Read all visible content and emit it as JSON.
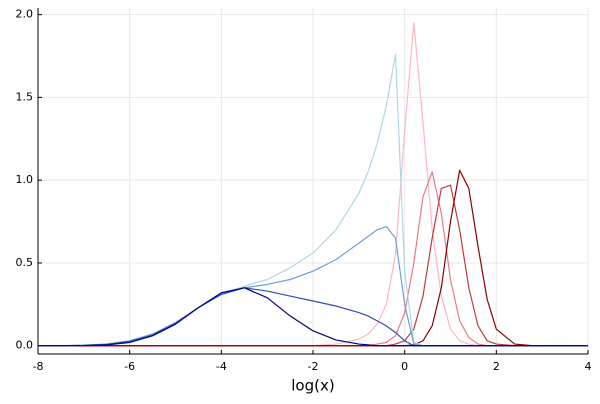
{
  "chart_data": {
    "type": "line",
    "xlabel": "log(x)",
    "x": [
      -8,
      -7.5,
      -7,
      -6.5,
      -6,
      -5.5,
      -5,
      -4.5,
      -4,
      -3.5,
      -3,
      -2.5,
      -2,
      -1.5,
      -1,
      -0.8,
      -0.6,
      -0.4,
      -0.2,
      0,
      0.2,
      0.4,
      0.6,
      0.8,
      1,
      1.2,
      1.4,
      1.6,
      1.8,
      2,
      2.4,
      2.8,
      3.2,
      3.6,
      4
    ],
    "series": [
      {
        "color": "#ffb6c1",
        "values": [
          0,
          0,
          0,
          0,
          0,
          0,
          0,
          0,
          0,
          0,
          0,
          0,
          0,
          0.01,
          0.04,
          0.07,
          0.13,
          0.25,
          0.55,
          1.3,
          1.95,
          1.35,
          0.7,
          0.3,
          0.1,
          0.03,
          0.01,
          0,
          0,
          0,
          0,
          0,
          0,
          0,
          0
        ]
      },
      {
        "color": "#e67a86",
        "values": [
          0,
          0,
          0,
          0,
          0,
          0,
          0,
          0,
          0,
          0,
          0,
          0,
          0,
          0,
          0,
          0,
          0.01,
          0.02,
          0.06,
          0.2,
          0.5,
          0.9,
          1.05,
          0.8,
          0.4,
          0.15,
          0.05,
          0.01,
          0,
          0,
          0,
          0,
          0,
          0,
          0
        ]
      },
      {
        "color": "#c03a44",
        "values": [
          0,
          0,
          0,
          0,
          0,
          0,
          0,
          0,
          0,
          0,
          0,
          0,
          0,
          0,
          0,
          0,
          0,
          0,
          0.01,
          0.03,
          0.1,
          0.3,
          0.65,
          0.95,
          0.97,
          0.7,
          0.35,
          0.12,
          0.03,
          0.01,
          0,
          0,
          0,
          0,
          0
        ]
      },
      {
        "color": "#8b0000",
        "values": [
          0,
          0,
          0,
          0,
          0,
          0,
          0,
          0,
          0,
          0,
          0,
          0,
          0,
          0,
          0,
          0,
          0,
          0,
          0,
          0,
          0.005,
          0.03,
          0.12,
          0.35,
          0.75,
          1.06,
          0.95,
          0.6,
          0.28,
          0.1,
          0.01,
          0,
          0,
          0,
          0
        ]
      },
      {
        "color": "#add8e6",
        "values": [
          0,
          0,
          0.003,
          0.01,
          0.03,
          0.07,
          0.14,
          0.23,
          0.31,
          0.36,
          0.4,
          0.47,
          0.56,
          0.7,
          0.92,
          1.05,
          1.22,
          1.45,
          1.76,
          0.45,
          0.02,
          0,
          0,
          0,
          0,
          0,
          0,
          0,
          0,
          0,
          0,
          0,
          0,
          0,
          0
        ]
      },
      {
        "color": "#6f9fd6",
        "values": [
          0,
          0,
          0.003,
          0.01,
          0.03,
          0.07,
          0.14,
          0.23,
          0.31,
          0.35,
          0.37,
          0.4,
          0.45,
          0.52,
          0.62,
          0.66,
          0.7,
          0.72,
          0.65,
          0.25,
          0.01,
          0,
          0,
          0,
          0,
          0,
          0,
          0,
          0,
          0,
          0,
          0,
          0,
          0,
          0
        ]
      },
      {
        "color": "#2e4fb5",
        "values": [
          0,
          0,
          0.002,
          0.008,
          0.025,
          0.065,
          0.135,
          0.23,
          0.31,
          0.35,
          0.33,
          0.3,
          0.27,
          0.24,
          0.2,
          0.18,
          0.15,
          0.12,
          0.08,
          0.03,
          0,
          0,
          0,
          0,
          0,
          0,
          0,
          0,
          0,
          0,
          0,
          0,
          0,
          0,
          0
        ]
      },
      {
        "color": "#00008b",
        "values": [
          0,
          0,
          0.001,
          0.005,
          0.02,
          0.06,
          0.13,
          0.23,
          0.32,
          0.35,
          0.29,
          0.18,
          0.09,
          0.035,
          0.01,
          0.005,
          0,
          0,
          0,
          0,
          0,
          0,
          0,
          0,
          0,
          0,
          0,
          0,
          0,
          0,
          0,
          0,
          0,
          0,
          0
        ]
      }
    ],
    "xlim": [
      -8,
      4
    ],
    "xticks": [
      -8,
      -6,
      -4,
      -2,
      0,
      2,
      4
    ],
    "ylim": [
      -0.05,
      2.04
    ],
    "yticks": [
      {
        "value": 0,
        "label": "0.0"
      },
      {
        "value": 0.5,
        "label": "0.5"
      },
      {
        "value": 1,
        "label": "1.0"
      },
      {
        "value": 1.5,
        "label": "1.5"
      },
      {
        "value": 2,
        "label": "2.0"
      }
    ],
    "grid": true
  }
}
